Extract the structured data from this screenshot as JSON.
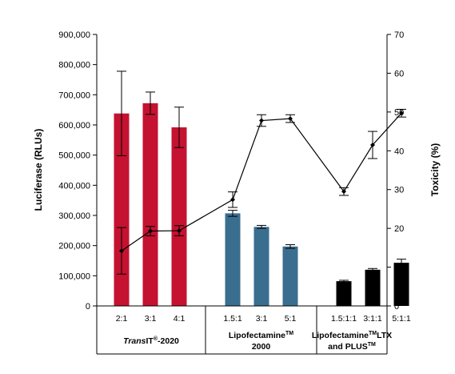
{
  "chart_data": {
    "type": "bar",
    "title": "",
    "y_left": {
      "label": "Luciferase (RLUs)",
      "lim": [
        0,
        900000
      ],
      "ticks": [
        0,
        100000,
        200000,
        300000,
        400000,
        500000,
        600000,
        700000,
        800000,
        900000
      ],
      "tick_labels": [
        "0",
        "100,000",
        "200,000",
        "300,000",
        "400,000",
        "500,000",
        "600,000",
        "700,000",
        "800,000",
        "900,000"
      ]
    },
    "y_right": {
      "label": "Toxicity (%)",
      "lim": [
        0,
        70
      ],
      "ticks": [
        0,
        10,
        20,
        30,
        40,
        50,
        60,
        70
      ],
      "tick_labels": [
        "0",
        "10",
        "20",
        "30",
        "40",
        "50",
        "60",
        "70"
      ]
    },
    "categories": [
      "2:1",
      "3:1",
      "4:1",
      "1.5:1",
      "3:1",
      "5:1",
      "1.5:1:1",
      "3:1:1",
      "5:1:1"
    ],
    "groups": [
      {
        "label_parts": [
          {
            "text": "Trans",
            "style": "italic"
          },
          {
            "text": "IT",
            "style": "normal"
          },
          {
            "text": "®",
            "style": "sup"
          },
          {
            "text": "-2020",
            "style": "normal"
          }
        ],
        "label_line2": "",
        "count": 3,
        "color": "#c41230"
      },
      {
        "label_parts": [
          {
            "text": "Lipofectamine",
            "style": "normal"
          },
          {
            "text": "TM",
            "style": "sup"
          }
        ],
        "label_line2": "2000",
        "count": 3,
        "color": "#3a6e8f"
      },
      {
        "label_parts": [
          {
            "text": "Lipofectamine",
            "style": "normal"
          },
          {
            "text": "TM",
            "style": "sup"
          },
          {
            "text": "LTX",
            "style": "normal"
          }
        ],
        "label_line2_parts": [
          {
            "text": "and PLUS",
            "style": "normal"
          },
          {
            "text": "TM",
            "style": "sup"
          }
        ],
        "count": 3,
        "color": "#000000"
      }
    ],
    "series": [
      {
        "kind": "bar",
        "axis": "left",
        "values": [
          638000,
          672000,
          592000,
          307000,
          262000,
          197000,
          82000,
          120000,
          143000
        ],
        "errors": [
          140000,
          37000,
          67000,
          10000,
          5000,
          6000,
          3000,
          4000,
          12000
        ]
      },
      {
        "kind": "line",
        "axis": "right",
        "values": [
          14.2,
          19.3,
          19.4,
          27.4,
          47.8,
          48.3,
          29.5,
          41.5,
          49.7
        ],
        "errors": [
          6.0,
          1.2,
          1.3,
          2.0,
          1.5,
          1.0,
          1.0,
          3.5,
          1.0
        ]
      }
    ]
  }
}
